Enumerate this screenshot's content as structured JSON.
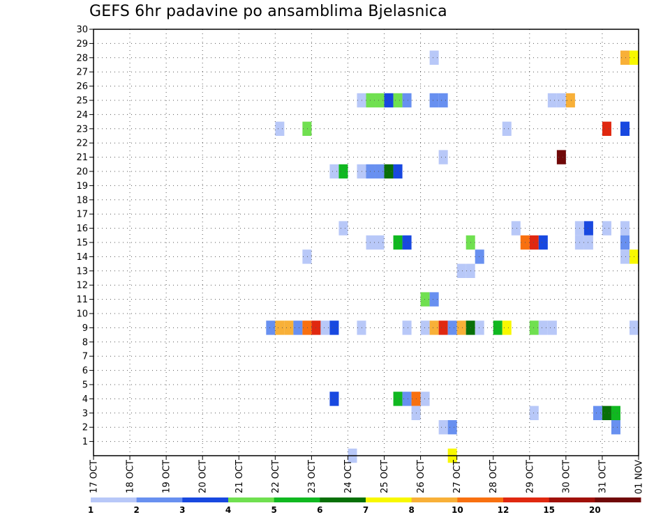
{
  "chart_data": {
    "type": "heatmap",
    "title": "GEFS 6hr padavine po ansamblima Bjelasnica",
    "xlabel": "",
    "ylabel": "",
    "x_unit": "6-hour step from 17 OCT 00Z",
    "x_range": [
      0,
      60
    ],
    "y_range": [
      0,
      30
    ],
    "y_ticks": [
      1,
      2,
      3,
      4,
      5,
      6,
      7,
      8,
      9,
      10,
      11,
      12,
      13,
      14,
      15,
      16,
      17,
      18,
      19,
      20,
      21,
      22,
      23,
      24,
      25,
      26,
      27,
      28,
      29,
      30
    ],
    "x_tick_labels": [
      "17 OCT",
      "18 OCT",
      "19 OCT",
      "20 OCT",
      "21 OCT",
      "22 OCT",
      "23 OCT",
      "24 OCT",
      "25 OCT",
      "26 OCT",
      "27 OCT",
      "28 OCT",
      "29 OCT",
      "30 OCT",
      "31 OCT",
      "01 NOV"
    ],
    "grid": true,
    "legend": {
      "placement": "bottom",
      "colors": [
        "#b8c8f8",
        "#6890f0",
        "#1848e0",
        "#70e050",
        "#10b820",
        "#087008",
        "#f8f800",
        "#f8b038",
        "#f87010",
        "#e02810",
        "#a01008",
        "#700808"
      ],
      "labels": [
        "1",
        "2",
        "3",
        "4",
        "5",
        "6",
        "7",
        "8",
        "10",
        "12",
        "15",
        "20"
      ]
    },
    "cells": [
      {
        "t": 37,
        "m": 28,
        "c": 1
      },
      {
        "t": 58,
        "m": 28,
        "c": 8
      },
      {
        "t": 59,
        "m": 28,
        "c": 7
      },
      {
        "t": 29,
        "m": 25,
        "c": 1
      },
      {
        "t": 30,
        "m": 25,
        "c": 4
      },
      {
        "t": 31,
        "m": 25,
        "c": 4
      },
      {
        "t": 32,
        "m": 25,
        "c": 3
      },
      {
        "t": 33,
        "m": 25,
        "c": 4
      },
      {
        "t": 34,
        "m": 25,
        "c": 2
      },
      {
        "t": 37,
        "m": 25,
        "c": 2
      },
      {
        "t": 38,
        "m": 25,
        "c": 2
      },
      {
        "t": 50,
        "m": 25,
        "c": 1
      },
      {
        "t": 51,
        "m": 25,
        "c": 1
      },
      {
        "t": 52,
        "m": 25,
        "c": 8
      },
      {
        "t": 20,
        "m": 23,
        "c": 1
      },
      {
        "t": 23,
        "m": 23,
        "c": 4
      },
      {
        "t": 45,
        "m": 23,
        "c": 1
      },
      {
        "t": 56,
        "m": 23,
        "c": 10
      },
      {
        "t": 58,
        "m": 23,
        "c": 3
      },
      {
        "t": 38,
        "m": 21,
        "c": 1
      },
      {
        "t": 51,
        "m": 21,
        "c": 12
      },
      {
        "t": 26,
        "m": 20,
        "c": 1
      },
      {
        "t": 27,
        "m": 20,
        "c": 5
      },
      {
        "t": 29,
        "m": 20,
        "c": 1
      },
      {
        "t": 30,
        "m": 20,
        "c": 2
      },
      {
        "t": 31,
        "m": 20,
        "c": 2
      },
      {
        "t": 32,
        "m": 20,
        "c": 6
      },
      {
        "t": 33,
        "m": 20,
        "c": 3
      },
      {
        "t": 27,
        "m": 16,
        "c": 1
      },
      {
        "t": 46,
        "m": 16,
        "c": 1
      },
      {
        "t": 53,
        "m": 16,
        "c": 1
      },
      {
        "t": 54,
        "m": 16,
        "c": 3
      },
      {
        "t": 56,
        "m": 16,
        "c": 1
      },
      {
        "t": 58,
        "m": 16,
        "c": 1
      },
      {
        "t": 30,
        "m": 15,
        "c": 1
      },
      {
        "t": 31,
        "m": 15,
        "c": 1
      },
      {
        "t": 33,
        "m": 15,
        "c": 5
      },
      {
        "t": 34,
        "m": 15,
        "c": 3
      },
      {
        "t": 41,
        "m": 15,
        "c": 4
      },
      {
        "t": 47,
        "m": 15,
        "c": 9
      },
      {
        "t": 48,
        "m": 15,
        "c": 10
      },
      {
        "t": 49,
        "m": 15,
        "c": 3
      },
      {
        "t": 53,
        "m": 15,
        "c": 1
      },
      {
        "t": 54,
        "m": 15,
        "c": 1
      },
      {
        "t": 58,
        "m": 15,
        "c": 2
      },
      {
        "t": 23,
        "m": 14,
        "c": 1
      },
      {
        "t": 42,
        "m": 14,
        "c": 2
      },
      {
        "t": 58,
        "m": 14,
        "c": 1
      },
      {
        "t": 59,
        "m": 14,
        "c": 7
      },
      {
        "t": 40,
        "m": 13,
        "c": 1
      },
      {
        "t": 41,
        "m": 13,
        "c": 1
      },
      {
        "t": 36,
        "m": 11,
        "c": 4
      },
      {
        "t": 37,
        "m": 11,
        "c": 2
      },
      {
        "t": 19,
        "m": 9,
        "c": 2
      },
      {
        "t": 20,
        "m": 9,
        "c": 8
      },
      {
        "t": 21,
        "m": 9,
        "c": 8
      },
      {
        "t": 22,
        "m": 9,
        "c": 2
      },
      {
        "t": 23,
        "m": 9,
        "c": 9
      },
      {
        "t": 24,
        "m": 9,
        "c": 10
      },
      {
        "t": 25,
        "m": 9,
        "c": 1
      },
      {
        "t": 26,
        "m": 9,
        "c": 3
      },
      {
        "t": 29,
        "m": 9,
        "c": 1
      },
      {
        "t": 34,
        "m": 9,
        "c": 1
      },
      {
        "t": 36,
        "m": 9,
        "c": 1
      },
      {
        "t": 37,
        "m": 9,
        "c": 8
      },
      {
        "t": 38,
        "m": 9,
        "c": 10
      },
      {
        "t": 39,
        "m": 9,
        "c": 2
      },
      {
        "t": 40,
        "m": 9,
        "c": 8
      },
      {
        "t": 41,
        "m": 9,
        "c": 6
      },
      {
        "t": 42,
        "m": 9,
        "c": 1
      },
      {
        "t": 44,
        "m": 9,
        "c": 5
      },
      {
        "t": 45,
        "m": 9,
        "c": 7
      },
      {
        "t": 48,
        "m": 9,
        "c": 4
      },
      {
        "t": 49,
        "m": 9,
        "c": 1
      },
      {
        "t": 50,
        "m": 9,
        "c": 1
      },
      {
        "t": 59,
        "m": 9,
        "c": 1
      },
      {
        "t": 26,
        "m": 4,
        "c": 3
      },
      {
        "t": 33,
        "m": 4,
        "c": 5
      },
      {
        "t": 34,
        "m": 4,
        "c": 2
      },
      {
        "t": 35,
        "m": 4,
        "c": 9
      },
      {
        "t": 36,
        "m": 4,
        "c": 1
      },
      {
        "t": 35,
        "m": 3,
        "c": 1
      },
      {
        "t": 48,
        "m": 3,
        "c": 1
      },
      {
        "t": 55,
        "m": 3,
        "c": 2
      },
      {
        "t": 56,
        "m": 3,
        "c": 6
      },
      {
        "t": 57,
        "m": 3,
        "c": 5
      },
      {
        "t": 38,
        "m": 2,
        "c": 1
      },
      {
        "t": 39,
        "m": 2,
        "c": 2
      },
      {
        "t": 57,
        "m": 2,
        "c": 2
      },
      {
        "t": 28,
        "m": 0,
        "c": 1
      },
      {
        "t": 39,
        "m": 0,
        "c": 7
      }
    ]
  }
}
